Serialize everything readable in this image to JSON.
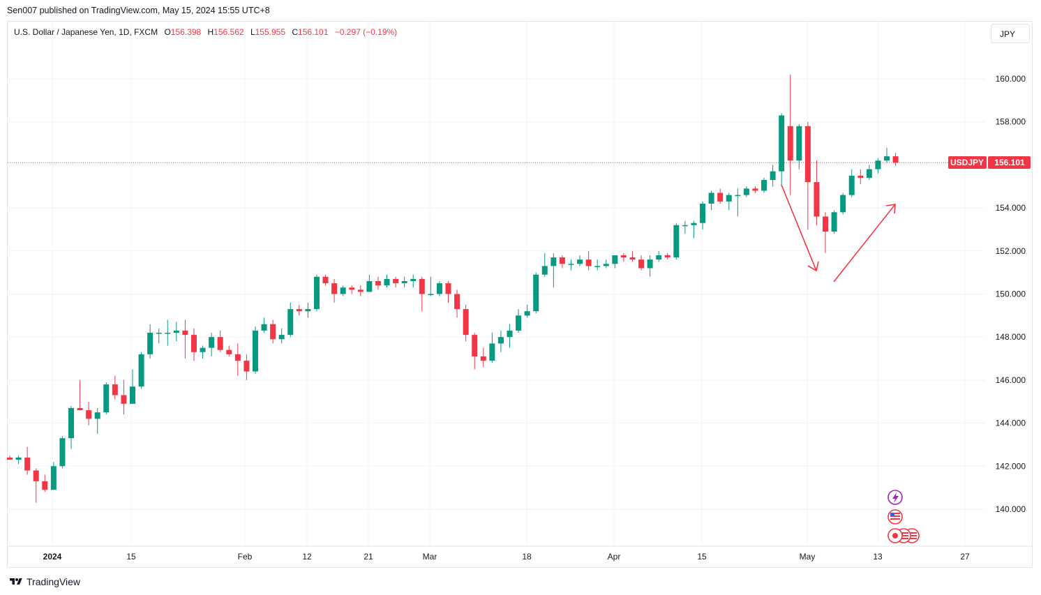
{
  "publisher": "Sen007 published on TradingView.com, May 15, 2024 15:55 UTC+8",
  "legend": {
    "title": "U.S. Dollar / Japanese Yen, 1D, FXCM",
    "o_label": "O",
    "o": "156.398",
    "h_label": "H",
    "h": "156.562",
    "l_label": "L",
    "l": "155.955",
    "c_label": "C",
    "c": "156.101",
    "change": "−0.297 (−0.19%)"
  },
  "currency_button": "JPY",
  "footer": {
    "brand": "TradingView"
  },
  "colors": {
    "up": "#089981",
    "down": "#f23645",
    "grid": "#f0f3fa",
    "annotation": "#f23645"
  },
  "chart_data": {
    "type": "candlestick",
    "symbol": "USDJPY",
    "last_price": "156.101",
    "ylim": [
      138.2,
      162.2
    ],
    "y_ticks": [
      "160.000",
      "158.000",
      "156.000",
      "154.000",
      "152.000",
      "150.000",
      "148.000",
      "146.000",
      "144.000",
      "142.000",
      "140.000"
    ],
    "x_ticks": [
      "2024",
      "15",
      "Feb",
      "12",
      "21",
      "Mar",
      "18",
      "Apr",
      "15",
      "May",
      "13",
      "27"
    ],
    "candles": [
      {
        "o": 142.4,
        "h": 142.5,
        "l": 142.3,
        "c": 142.3
      },
      {
        "o": 142.3,
        "h": 142.5,
        "l": 142.1,
        "c": 142.4
      },
      {
        "o": 142.4,
        "h": 142.9,
        "l": 141.6,
        "c": 141.8
      },
      {
        "o": 141.8,
        "h": 141.9,
        "l": 140.3,
        "c": 141.3
      },
      {
        "o": 141.3,
        "h": 141.6,
        "l": 140.8,
        "c": 140.9
      },
      {
        "o": 140.9,
        "h": 142.2,
        "l": 140.9,
        "c": 142.0
      },
      {
        "o": 142.0,
        "h": 143.4,
        "l": 141.9,
        "c": 143.3
      },
      {
        "o": 143.3,
        "h": 144.8,
        "l": 142.8,
        "c": 144.7
      },
      {
        "o": 144.7,
        "h": 146.0,
        "l": 144.6,
        "c": 144.6
      },
      {
        "o": 144.6,
        "h": 145.0,
        "l": 143.9,
        "c": 144.2
      },
      {
        "o": 144.2,
        "h": 144.7,
        "l": 143.5,
        "c": 144.5
      },
      {
        "o": 144.5,
        "h": 145.9,
        "l": 144.4,
        "c": 145.8
      },
      {
        "o": 145.8,
        "h": 146.2,
        "l": 145.1,
        "c": 145.3
      },
      {
        "o": 145.3,
        "h": 146.0,
        "l": 144.4,
        "c": 144.9
      },
      {
        "o": 144.9,
        "h": 146.5,
        "l": 144.9,
        "c": 145.7
      },
      {
        "o": 145.7,
        "h": 147.3,
        "l": 145.6,
        "c": 147.2
      },
      {
        "o": 147.2,
        "h": 148.6,
        "l": 147.0,
        "c": 148.2
      },
      {
        "o": 148.2,
        "h": 148.4,
        "l": 147.7,
        "c": 148.2
      },
      {
        "o": 148.2,
        "h": 148.8,
        "l": 147.6,
        "c": 148.2
      },
      {
        "o": 148.2,
        "h": 148.7,
        "l": 147.8,
        "c": 148.3
      },
      {
        "o": 148.3,
        "h": 148.8,
        "l": 147.0,
        "c": 148.1
      },
      {
        "o": 148.1,
        "h": 148.4,
        "l": 146.9,
        "c": 147.3
      },
      {
        "o": 147.3,
        "h": 147.6,
        "l": 147.0,
        "c": 147.5
      },
      {
        "o": 147.5,
        "h": 148.2,
        "l": 147.1,
        "c": 148.0
      },
      {
        "o": 148.0,
        "h": 148.3,
        "l": 147.3,
        "c": 147.4
      },
      {
        "o": 147.4,
        "h": 147.6,
        "l": 147.1,
        "c": 147.2
      },
      {
        "o": 147.2,
        "h": 147.7,
        "l": 146.2,
        "c": 146.9
      },
      {
        "o": 146.9,
        "h": 147.2,
        "l": 146.0,
        "c": 146.4
      },
      {
        "o": 146.4,
        "h": 148.5,
        "l": 146.3,
        "c": 148.3
      },
      {
        "o": 148.3,
        "h": 148.9,
        "l": 148.2,
        "c": 148.6
      },
      {
        "o": 148.6,
        "h": 148.8,
        "l": 147.7,
        "c": 147.9
      },
      {
        "o": 147.9,
        "h": 148.4,
        "l": 147.7,
        "c": 148.1
      },
      {
        "o": 148.1,
        "h": 149.6,
        "l": 148.0,
        "c": 149.3
      },
      {
        "o": 149.3,
        "h": 149.5,
        "l": 149.0,
        "c": 149.2
      },
      {
        "o": 149.2,
        "h": 149.6,
        "l": 148.9,
        "c": 149.3
      },
      {
        "o": 149.3,
        "h": 150.9,
        "l": 149.2,
        "c": 150.8
      },
      {
        "o": 150.8,
        "h": 150.9,
        "l": 150.4,
        "c": 150.5
      },
      {
        "o": 150.5,
        "h": 150.7,
        "l": 149.6,
        "c": 150.0
      },
      {
        "o": 150.0,
        "h": 150.4,
        "l": 149.9,
        "c": 150.3
      },
      {
        "o": 150.3,
        "h": 150.4,
        "l": 150.0,
        "c": 150.2
      },
      {
        "o": 150.2,
        "h": 150.4,
        "l": 149.9,
        "c": 150.1
      },
      {
        "o": 150.1,
        "h": 150.9,
        "l": 150.1,
        "c": 150.6
      },
      {
        "o": 150.6,
        "h": 150.8,
        "l": 150.2,
        "c": 150.4
      },
      {
        "o": 150.4,
        "h": 150.9,
        "l": 150.3,
        "c": 150.7
      },
      {
        "o": 150.7,
        "h": 150.8,
        "l": 150.3,
        "c": 150.5
      },
      {
        "o": 150.5,
        "h": 150.8,
        "l": 150.3,
        "c": 150.6
      },
      {
        "o": 150.6,
        "h": 150.9,
        "l": 150.3,
        "c": 150.7
      },
      {
        "o": 150.7,
        "h": 150.8,
        "l": 149.2,
        "c": 150.0
      },
      {
        "o": 150.0,
        "h": 150.8,
        "l": 149.9,
        "c": 150.0
      },
      {
        "o": 150.0,
        "h": 150.6,
        "l": 149.9,
        "c": 150.5
      },
      {
        "o": 150.5,
        "h": 150.6,
        "l": 149.6,
        "c": 150.0
      },
      {
        "o": 150.0,
        "h": 150.2,
        "l": 148.9,
        "c": 149.3
      },
      {
        "o": 149.3,
        "h": 149.5,
        "l": 147.8,
        "c": 148.1
      },
      {
        "o": 148.1,
        "h": 148.2,
        "l": 146.5,
        "c": 147.1
      },
      {
        "o": 147.1,
        "h": 147.5,
        "l": 146.6,
        "c": 146.9
      },
      {
        "o": 146.9,
        "h": 148.2,
        "l": 146.8,
        "c": 147.7
      },
      {
        "o": 147.7,
        "h": 148.3,
        "l": 147.3,
        "c": 148.0
      },
      {
        "o": 148.0,
        "h": 148.6,
        "l": 147.5,
        "c": 148.3
      },
      {
        "o": 148.3,
        "h": 149.3,
        "l": 148.2,
        "c": 149.0
      },
      {
        "o": 149.0,
        "h": 149.5,
        "l": 148.9,
        "c": 149.2
      },
      {
        "o": 149.2,
        "h": 151.0,
        "l": 149.1,
        "c": 150.9
      },
      {
        "o": 150.9,
        "h": 151.9,
        "l": 150.8,
        "c": 151.3
      },
      {
        "o": 151.3,
        "h": 151.9,
        "l": 150.3,
        "c": 151.7
      },
      {
        "o": 151.7,
        "h": 151.8,
        "l": 151.2,
        "c": 151.4
      },
      {
        "o": 151.4,
        "h": 151.6,
        "l": 151.1,
        "c": 151.4
      },
      {
        "o": 151.4,
        "h": 151.8,
        "l": 151.3,
        "c": 151.6
      },
      {
        "o": 151.6,
        "h": 152.0,
        "l": 151.1,
        "c": 151.3
      },
      {
        "o": 151.3,
        "h": 151.6,
        "l": 151.1,
        "c": 151.3
      },
      {
        "o": 151.3,
        "h": 151.6,
        "l": 151.2,
        "c": 151.4
      },
      {
        "o": 151.4,
        "h": 151.7,
        "l": 151.2,
        "c": 151.8
      },
      {
        "o": 151.8,
        "h": 151.9,
        "l": 151.5,
        "c": 151.7
      },
      {
        "o": 151.7,
        "h": 152.0,
        "l": 151.5,
        "c": 151.6
      },
      {
        "o": 151.6,
        "h": 151.8,
        "l": 151.1,
        "c": 151.2
      },
      {
        "o": 151.2,
        "h": 151.8,
        "l": 150.8,
        "c": 151.6
      },
      {
        "o": 151.6,
        "h": 152.0,
        "l": 151.5,
        "c": 151.8
      },
      {
        "o": 151.8,
        "h": 151.9,
        "l": 151.6,
        "c": 151.7
      },
      {
        "o": 151.7,
        "h": 153.3,
        "l": 151.6,
        "c": 153.2
      },
      {
        "o": 153.2,
        "h": 153.4,
        "l": 152.8,
        "c": 153.2
      },
      {
        "o": 153.2,
        "h": 153.4,
        "l": 152.6,
        "c": 153.3
      },
      {
        "o": 153.3,
        "h": 154.3,
        "l": 153.0,
        "c": 154.2
      },
      {
        "o": 154.2,
        "h": 154.8,
        "l": 153.9,
        "c": 154.7
      },
      {
        "o": 154.7,
        "h": 154.9,
        "l": 154.2,
        "c": 154.3
      },
      {
        "o": 154.3,
        "h": 154.7,
        "l": 153.9,
        "c": 154.6
      },
      {
        "o": 154.6,
        "h": 154.9,
        "l": 153.6,
        "c": 154.6
      },
      {
        "o": 154.6,
        "h": 155.0,
        "l": 154.5,
        "c": 154.9
      },
      {
        "o": 154.9,
        "h": 155.0,
        "l": 154.7,
        "c": 154.8
      },
      {
        "o": 154.8,
        "h": 155.4,
        "l": 154.7,
        "c": 155.3
      },
      {
        "o": 155.3,
        "h": 156.0,
        "l": 155.0,
        "c": 155.7
      },
      {
        "o": 155.7,
        "h": 158.4,
        "l": 155.0,
        "c": 158.3
      },
      {
        "o": 157.8,
        "h": 160.2,
        "l": 154.6,
        "c": 156.2
      },
      {
        "o": 156.2,
        "h": 157.9,
        "l": 155.8,
        "c": 157.8
      },
      {
        "o": 157.8,
        "h": 158.0,
        "l": 153.0,
        "c": 155.2
      },
      {
        "o": 155.2,
        "h": 156.2,
        "l": 153.2,
        "c": 153.6
      },
      {
        "o": 153.6,
        "h": 153.8,
        "l": 151.9,
        "c": 152.9
      },
      {
        "o": 152.9,
        "h": 153.9,
        "l": 152.8,
        "c": 153.8
      },
      {
        "o": 153.8,
        "h": 154.7,
        "l": 153.7,
        "c": 154.6
      },
      {
        "o": 154.6,
        "h": 155.8,
        "l": 154.5,
        "c": 155.5
      },
      {
        "o": 155.5,
        "h": 155.8,
        "l": 155.1,
        "c": 155.4
      },
      {
        "o": 155.4,
        "h": 156.0,
        "l": 155.3,
        "c": 155.8
      },
      {
        "o": 155.8,
        "h": 156.3,
        "l": 155.6,
        "c": 156.2
      },
      {
        "o": 156.2,
        "h": 156.8,
        "l": 156.1,
        "c": 156.4
      },
      {
        "o": 156.4,
        "h": 156.56,
        "l": 155.96,
        "c": 156.1
      }
    ]
  }
}
